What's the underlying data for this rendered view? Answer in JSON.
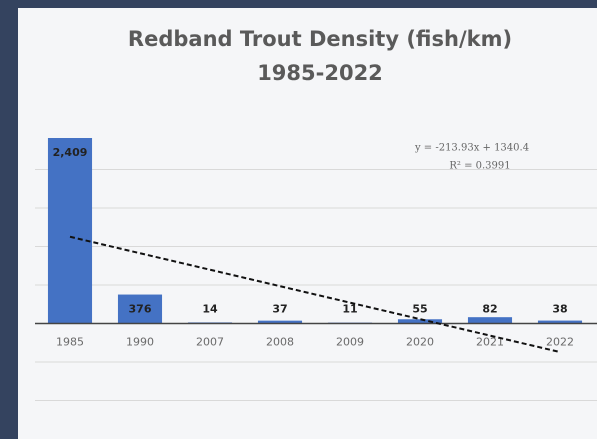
{
  "chart_data": {
    "type": "bar",
    "title": [
      "Redband Trout Density (fish/km)",
      "1985-2022"
    ],
    "categories": [
      "1985",
      "1990",
      "2007",
      "2008",
      "2009",
      "2020",
      "2021",
      "2022"
    ],
    "values": [
      2409,
      376,
      14,
      37,
      11,
      55,
      82,
      38
    ],
    "value_labels": [
      "2,409",
      "376",
      "14",
      "37",
      "11",
      "55",
      "82",
      "38"
    ],
    "color": "#4472c4",
    "ylim": [
      -1500,
      2500
    ],
    "yticks": [
      -1000,
      -500,
      0,
      500,
      1000,
      1500,
      2000
    ],
    "grid": true,
    "trendline": {
      "slope": -213.93,
      "intercept": 1340.4,
      "label": "y = -213.93x + 1340.4",
      "r2_label": "R² = 0.3991"
    }
  }
}
